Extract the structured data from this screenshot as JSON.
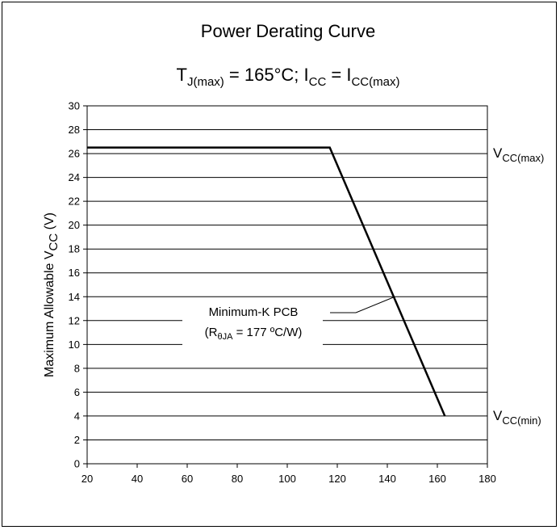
{
  "chart_data": {
    "type": "line",
    "title": "Power Derating Curve",
    "subtitle": {
      "tj_main": "T",
      "tj_sub": "J(max)",
      "tj_value": " = 165°C; I",
      "icc_sub": "CC",
      "eq": " = I",
      "iccmax_sub": "CC(max)"
    },
    "ylabel": {
      "main": "Maximum Allowable V",
      "sub": "CC",
      "unit": " (V)"
    },
    "xlabel": "",
    "xlim": [
      20,
      180
    ],
    "ylim": [
      0,
      30
    ],
    "xticks": [
      20,
      40,
      60,
      80,
      100,
      120,
      140,
      160,
      180
    ],
    "yticks": [
      0,
      2,
      4,
      6,
      8,
      10,
      12,
      14,
      16,
      18,
      20,
      22,
      24,
      26,
      28,
      30
    ],
    "grid": "horizontal",
    "series": [
      {
        "x": [
          20,
          117,
          163
        ],
        "y": [
          26.5,
          26.5,
          4
        ]
      }
    ],
    "right_labels": [
      {
        "main": "V",
        "sub": "CC(max)",
        "y": 26
      },
      {
        "main": "V",
        "sub": "CC(min)",
        "y": 4
      }
    ],
    "annotation": {
      "line1": "Minimum-K PCB",
      "line2_pre": "(R",
      "line2_sub": "θJA",
      "line2_post": " = 177 ºC/W)",
      "point": [
        143,
        14
      ]
    }
  }
}
